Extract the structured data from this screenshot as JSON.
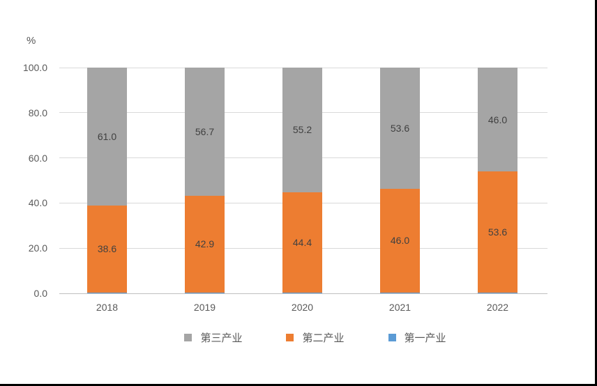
{
  "chart_data": {
    "type": "bar",
    "stacked": true,
    "title": "",
    "unit_label": "%",
    "xlabel": "",
    "ylabel": "%",
    "categories": [
      "2018",
      "2019",
      "2020",
      "2021",
      "2022"
    ],
    "series": [
      {
        "name": "第一产业",
        "color": "#5B9BD5",
        "values": [
          0.4,
          0.4,
          0.4,
          0.4,
          0.4
        ],
        "labels": [
          "",
          "",
          "",
          "",
          ""
        ]
      },
      {
        "name": "第二产业",
        "color": "#ED7D31",
        "values": [
          38.6,
          42.9,
          44.4,
          46.0,
          53.6
        ],
        "labels": [
          "38.6",
          "42.9",
          "44.4",
          "46.0",
          "53.6"
        ]
      },
      {
        "name": "第三产业",
        "color": "#A5A5A5",
        "values": [
          61.0,
          56.7,
          55.2,
          53.6,
          46.0
        ],
        "labels": [
          "61.0",
          "56.7",
          "55.2",
          "53.6",
          "46.0"
        ]
      }
    ],
    "ylim": [
      0,
      100
    ],
    "yticks": [
      {
        "value": 0,
        "label": "0.0"
      },
      {
        "value": 20,
        "label": "20.0"
      },
      {
        "value": 40,
        "label": "40.0"
      },
      {
        "value": 60,
        "label": "60.0"
      },
      {
        "value": 80,
        "label": "80.0"
      },
      {
        "value": 100,
        "label": "100.0"
      }
    ],
    "grid": true,
    "legend": {
      "position": "bottom",
      "items": [
        "第三产业",
        "第二产业",
        "第一产业"
      ]
    },
    "colors": {
      "gridline": "#d9d9d9",
      "axis_line": "#bfbfbf",
      "tick_label": "#595959",
      "data_label": "#404040",
      "frame_border": "#000000"
    }
  }
}
